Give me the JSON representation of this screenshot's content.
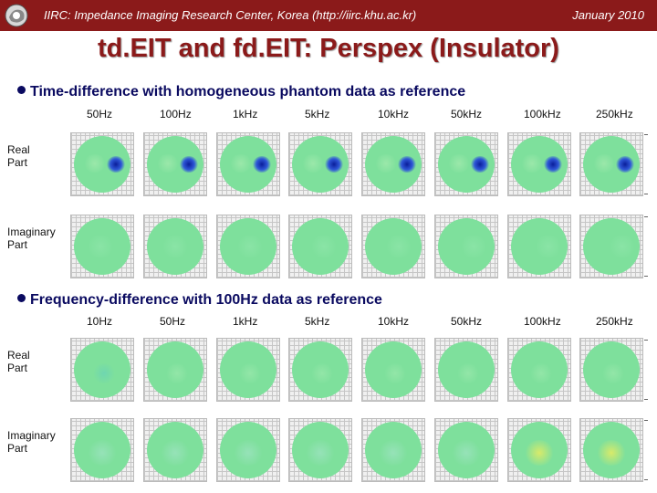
{
  "header": {
    "title": "IIRC: Impedance Imaging Research Center, Korea (http://iirc.khu.ac.kr)",
    "date": "January 2010",
    "background": "#8b1a1a"
  },
  "slide": {
    "title": "td.EIT and fd.EIT: Perspex (Insulator)"
  },
  "section1": {
    "bullet": "Time-difference with homogeneous phantom data as reference",
    "columns": [
      "50Hz",
      "100Hz",
      "1kHz",
      "5kHz",
      "10kHz",
      "50kHz",
      "100kHz",
      "250kHz"
    ],
    "row_real": "Real\nPart",
    "row_imag": "Imaginary\nPart"
  },
  "section2": {
    "bullet": "Frequency-difference with 100Hz data as reference",
    "columns": [
      "10Hz",
      "50Hz",
      "1kHz",
      "5kHz",
      "10kHz",
      "50kHz",
      "100kHz",
      "250kHz"
    ],
    "row_real": "Real\nPart",
    "row_imag": "Imaginary\nPart"
  },
  "colors": {
    "title": "#8b1a1a",
    "bullet": "#0a0a60",
    "image_base": "#7ee09c"
  }
}
